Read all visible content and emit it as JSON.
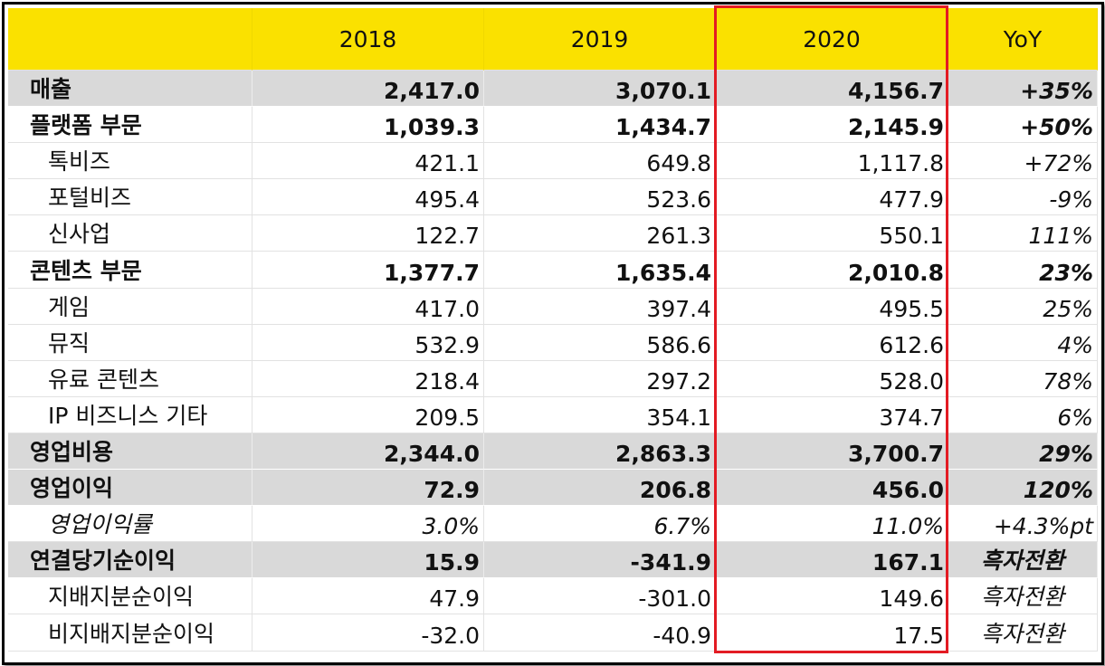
{
  "header": {
    "label": "",
    "c2018": "2018",
    "c2019": "2019",
    "c2020": "2020",
    "yoy": "YoY"
  },
  "rows": [
    {
      "label": "매출",
      "v2018": "2,417.0",
      "v2019": "3,070.1",
      "v2020": "4,156.7",
      "yoy": "+35%"
    },
    {
      "label": "플랫폼 부문",
      "v2018": "1,039.3",
      "v2019": "1,434.7",
      "v2020": "2,145.9",
      "yoy": "+50%"
    },
    {
      "label": "톡비즈",
      "v2018": "421.1",
      "v2019": "649.8",
      "v2020": "1,117.8",
      "yoy": "+72%"
    },
    {
      "label": "포털비즈",
      "v2018": "495.4",
      "v2019": "523.6",
      "v2020": "477.9",
      "yoy": "-9%"
    },
    {
      "label": "신사업",
      "v2018": "122.7",
      "v2019": "261.3",
      "v2020": "550.1",
      "yoy": "111%"
    },
    {
      "label": "콘텐츠 부문",
      "v2018": "1,377.7",
      "v2019": "1,635.4",
      "v2020": "2,010.8",
      "yoy": "23%"
    },
    {
      "label": "게임",
      "v2018": "417.0",
      "v2019": "397.4",
      "v2020": "495.5",
      "yoy": "25%"
    },
    {
      "label": "뮤직",
      "v2018": "532.9",
      "v2019": "586.6",
      "v2020": "612.6",
      "yoy": "4%"
    },
    {
      "label": "유료 콘텐츠",
      "v2018": "218.4",
      "v2019": "297.2",
      "v2020": "528.0",
      "yoy": "78%"
    },
    {
      "label": "IP 비즈니스 기타",
      "v2018": "209.5",
      "v2019": "354.1",
      "v2020": "374.7",
      "yoy": "6%"
    },
    {
      "label": "영업비용",
      "v2018": "2,344.0",
      "v2019": "2,863.3",
      "v2020": "3,700.7",
      "yoy": "29%"
    },
    {
      "label": "영업이익",
      "v2018": "72.9",
      "v2019": "206.8",
      "v2020": "456.0",
      "yoy": "120%"
    },
    {
      "label": "영업이익률",
      "v2018": "3.0%",
      "v2019": "6.7%",
      "v2020": "11.0%",
      "yoy": "+4.3%pt"
    },
    {
      "label": "연결당기순이익",
      "v2018": "15.9",
      "v2019": "-341.9",
      "v2020": "167.1",
      "yoy": "흑자전환"
    },
    {
      "label": "지배지분순이익",
      "v2018": "47.9",
      "v2019": "-301.0",
      "v2020": "149.6",
      "yoy": "흑자전환"
    },
    {
      "label": "비지배지분순이익",
      "v2018": "-32.0",
      "v2019": "-40.9",
      "v2020": "17.5",
      "yoy": "흑자전환"
    }
  ],
  "colors": {
    "header_bg": "#fae100",
    "gray_row": "#d9d9d9",
    "highlight_border": "#e31b23"
  }
}
